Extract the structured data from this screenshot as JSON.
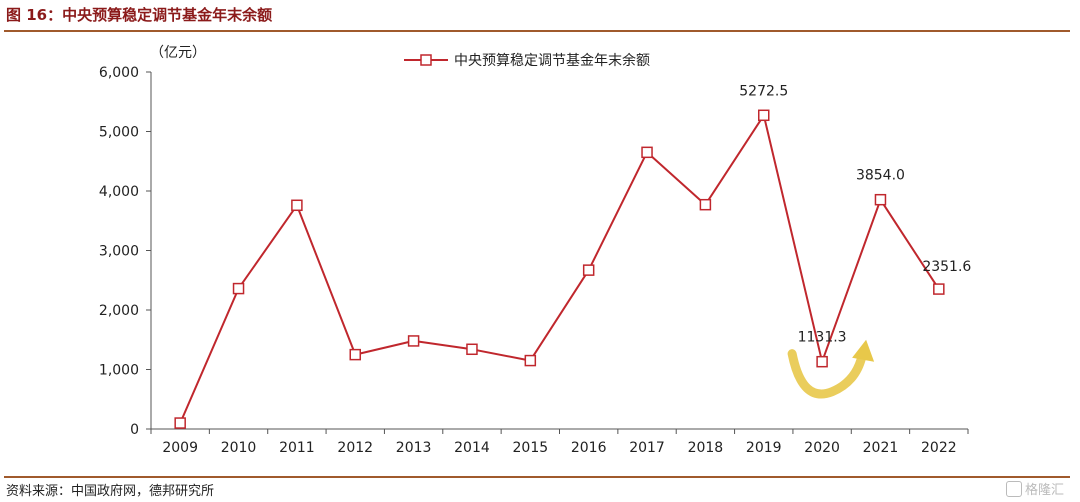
{
  "figure_title": "图 16：中央预算稳定调节基金年末余额",
  "source_note": "资料来源：中国政府网，德邦研究所",
  "watermark": "格隆汇",
  "colors": {
    "line": "#c0272d",
    "marker_fill": "#ffffff",
    "axis": "#555555",
    "rule": "#a05a2c",
    "arrow": "#e8c84a"
  },
  "chart_data": {
    "type": "line",
    "unit_label": "（亿元）",
    "categories": [
      "2009",
      "2010",
      "2011",
      "2012",
      "2013",
      "2014",
      "2015",
      "2016",
      "2017",
      "2018",
      "2019",
      "2020",
      "2021",
      "2022"
    ],
    "series": [
      {
        "name": "中央预算稳定调节基金年末余额",
        "values": [
          100,
          2360,
          3760,
          1250,
          1480,
          1340,
          1150,
          2670,
          4650,
          3770,
          5272.5,
          1131.3,
          3854.0,
          2351.6
        ]
      }
    ],
    "ylim": [
      0,
      6000
    ],
    "yticks": [
      0,
      1000,
      2000,
      3000,
      4000,
      5000,
      6000
    ],
    "ytick_labels": [
      "0",
      "1,000",
      "2,000",
      "3,000",
      "4,000",
      "5,000",
      "6,000"
    ],
    "data_labels": [
      {
        "index": 10,
        "text": "5272.5"
      },
      {
        "index": 11,
        "text": "1131.3"
      },
      {
        "index": 12,
        "text": "3854.0"
      },
      {
        "index": 13,
        "text": "2351.6"
      }
    ],
    "legend_position": "top-center",
    "grid": false
  }
}
